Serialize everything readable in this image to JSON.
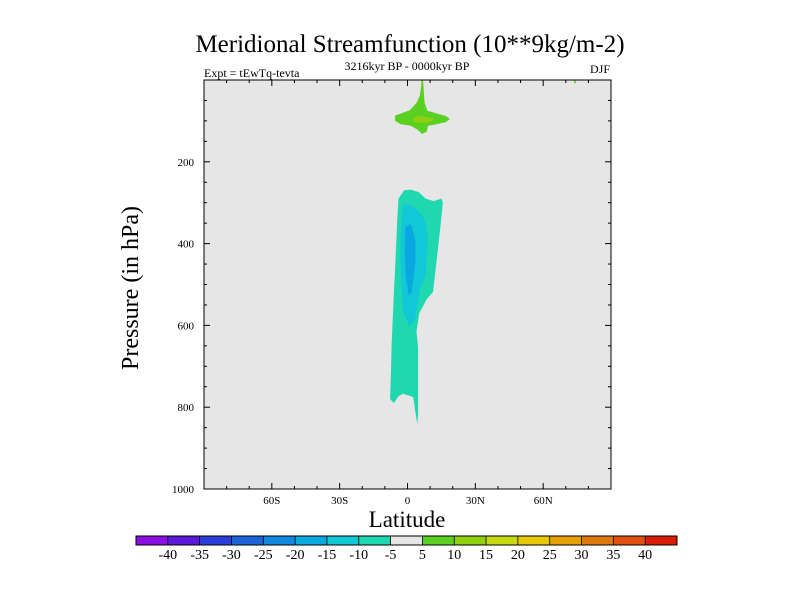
{
  "chart_data": {
    "type": "contour",
    "title": "Meridional Streamfunction (10**9kg/m-2)",
    "experiment": "Expt = tEwTq-tevta",
    "period": "3216kyr BP - 0000kyr BP",
    "season": "DJF",
    "xlabel": "Latitude",
    "ylabel": "Pressure (in hPa)",
    "xlim": [
      -90,
      90
    ],
    "ylim": [
      1000,
      0
    ],
    "x_ticks": [
      -60,
      -30,
      0,
      30,
      60
    ],
    "x_tick_labels": [
      "60S",
      "30S",
      "0",
      "30N",
      "60N"
    ],
    "y_ticks": [
      200,
      400,
      600,
      800,
      1000
    ],
    "y_tick_labels": [
      "200",
      "400",
      "600",
      "800",
      "1000"
    ],
    "colorbar": {
      "levels": [
        -40,
        -35,
        -30,
        -25,
        -20,
        -15,
        -10,
        -5,
        5,
        10,
        15,
        20,
        25,
        30,
        35,
        40
      ],
      "labels": [
        "-40",
        "-35",
        "-30",
        "-25",
        "-20",
        "-15",
        "-10",
        "-5",
        "5",
        "10",
        "15",
        "20",
        "25",
        "30",
        "35",
        "40"
      ],
      "colors": [
        "#8a0fe0",
        "#5a1ad8",
        "#2c3ed8",
        "#1c64d8",
        "#1289e0",
        "#0aa8e0",
        "#12c7d6",
        "#20d8b0",
        "#e6e6e6",
        "#5ad020",
        "#90d010",
        "#c8d810",
        "#e6c800",
        "#e6a000",
        "#e07810",
        "#e05010",
        "#d81e08"
      ]
    },
    "background_color": "#e6e6e6",
    "regions": [
      {
        "name": "positive-5-10-upper",
        "value_range": [
          5,
          10
        ],
        "color": "#5ad020",
        "points": [
          [
            6.2,
            0
          ],
          [
            6.8,
            0
          ],
          [
            7.0,
            8
          ],
          [
            7.5,
            55
          ],
          [
            8.8,
            75
          ],
          [
            13,
            82
          ],
          [
            17,
            88
          ],
          [
            18.7,
            95
          ],
          [
            17,
            103
          ],
          [
            12,
            109
          ],
          [
            9,
            112
          ],
          [
            8.6,
            126
          ],
          [
            6.5,
            132
          ],
          [
            4.5,
            122
          ],
          [
            1.5,
            112
          ],
          [
            -3,
            108
          ],
          [
            -5.5,
            100
          ],
          [
            -5.5,
            87
          ],
          [
            -2,
            80
          ],
          [
            1,
            74
          ],
          [
            4,
            56
          ],
          [
            5.5,
            38
          ],
          [
            6.0,
            15
          ]
        ]
      },
      {
        "name": "positive-10-15-upper",
        "value_range": [
          10,
          15
        ],
        "color": "#90d010",
        "points": [
          [
            4.2,
            88
          ],
          [
            8.5,
            90
          ],
          [
            12,
            95
          ],
          [
            10.5,
            101
          ],
          [
            7,
            105
          ],
          [
            3,
            103
          ],
          [
            2.2,
            96
          ]
        ]
      },
      {
        "name": "positive-5-10-edge",
        "value_range": [
          5,
          10
        ],
        "color": "#5ad020",
        "points": [
          [
            73.5,
            0
          ],
          [
            74.2,
            0
          ],
          [
            74.5,
            8
          ],
          [
            73.8,
            8
          ]
        ]
      },
      {
        "name": "negative-5-10-cell",
        "value_range": [
          -10,
          -5
        ],
        "color": "#20d8b0",
        "points": [
          [
            -1.5,
            270
          ],
          [
            1.5,
            268
          ],
          [
            5.0,
            274
          ],
          [
            8.0,
            290
          ],
          [
            11.5,
            296
          ],
          [
            15.0,
            290
          ],
          [
            15.6,
            300
          ],
          [
            14.7,
            352
          ],
          [
            13.5,
            412
          ],
          [
            12.3,
            470
          ],
          [
            11.5,
            508
          ],
          [
            11.3,
            518
          ],
          [
            8.5,
            536
          ],
          [
            5.2,
            570
          ],
          [
            4.0,
            615
          ],
          [
            4.7,
            655
          ],
          [
            4.7,
            818
          ],
          [
            4.3,
            840
          ],
          [
            3.5,
            812
          ],
          [
            2.5,
            775
          ],
          [
            -2.0,
            767
          ],
          [
            -4.0,
            773
          ],
          [
            -6.0,
            790
          ],
          [
            -7.7,
            780
          ],
          [
            -7.3,
            710
          ],
          [
            -7.0,
            640
          ],
          [
            -6.5,
            580
          ],
          [
            -6.0,
            520
          ],
          [
            -5.5,
            460
          ],
          [
            -5.0,
            400
          ],
          [
            -4.5,
            340
          ],
          [
            -4.0,
            290
          ]
        ]
      },
      {
        "name": "negative-10-15-core",
        "value_range": [
          -15,
          -10
        ],
        "color": "#12c7d6",
        "points": [
          [
            -2.0,
            305
          ],
          [
            1.0,
            304
          ],
          [
            4.5,
            318
          ],
          [
            7.5,
            340
          ],
          [
            9.0,
            378
          ],
          [
            8.5,
            430
          ],
          [
            8.0,
            480
          ],
          [
            5.8,
            505
          ],
          [
            4.5,
            545
          ],
          [
            3.2,
            590
          ],
          [
            0.6,
            600
          ],
          [
            -2.0,
            565
          ],
          [
            -2.8,
            500
          ],
          [
            -3.2,
            440
          ],
          [
            -3.0,
            380
          ],
          [
            -2.5,
            330
          ]
        ]
      },
      {
        "name": "negative-15-20-core",
        "value_range": [
          -20,
          -15
        ],
        "color": "#0aa8e0",
        "points": [
          [
            -1.0,
            360
          ],
          [
            1.5,
            352
          ],
          [
            3.5,
            392
          ],
          [
            3.5,
            440
          ],
          [
            2.5,
            490
          ],
          [
            1.8,
            520
          ],
          [
            0.5,
            525
          ],
          [
            -0.8,
            480
          ],
          [
            -1.2,
            420
          ]
        ]
      }
    ]
  }
}
